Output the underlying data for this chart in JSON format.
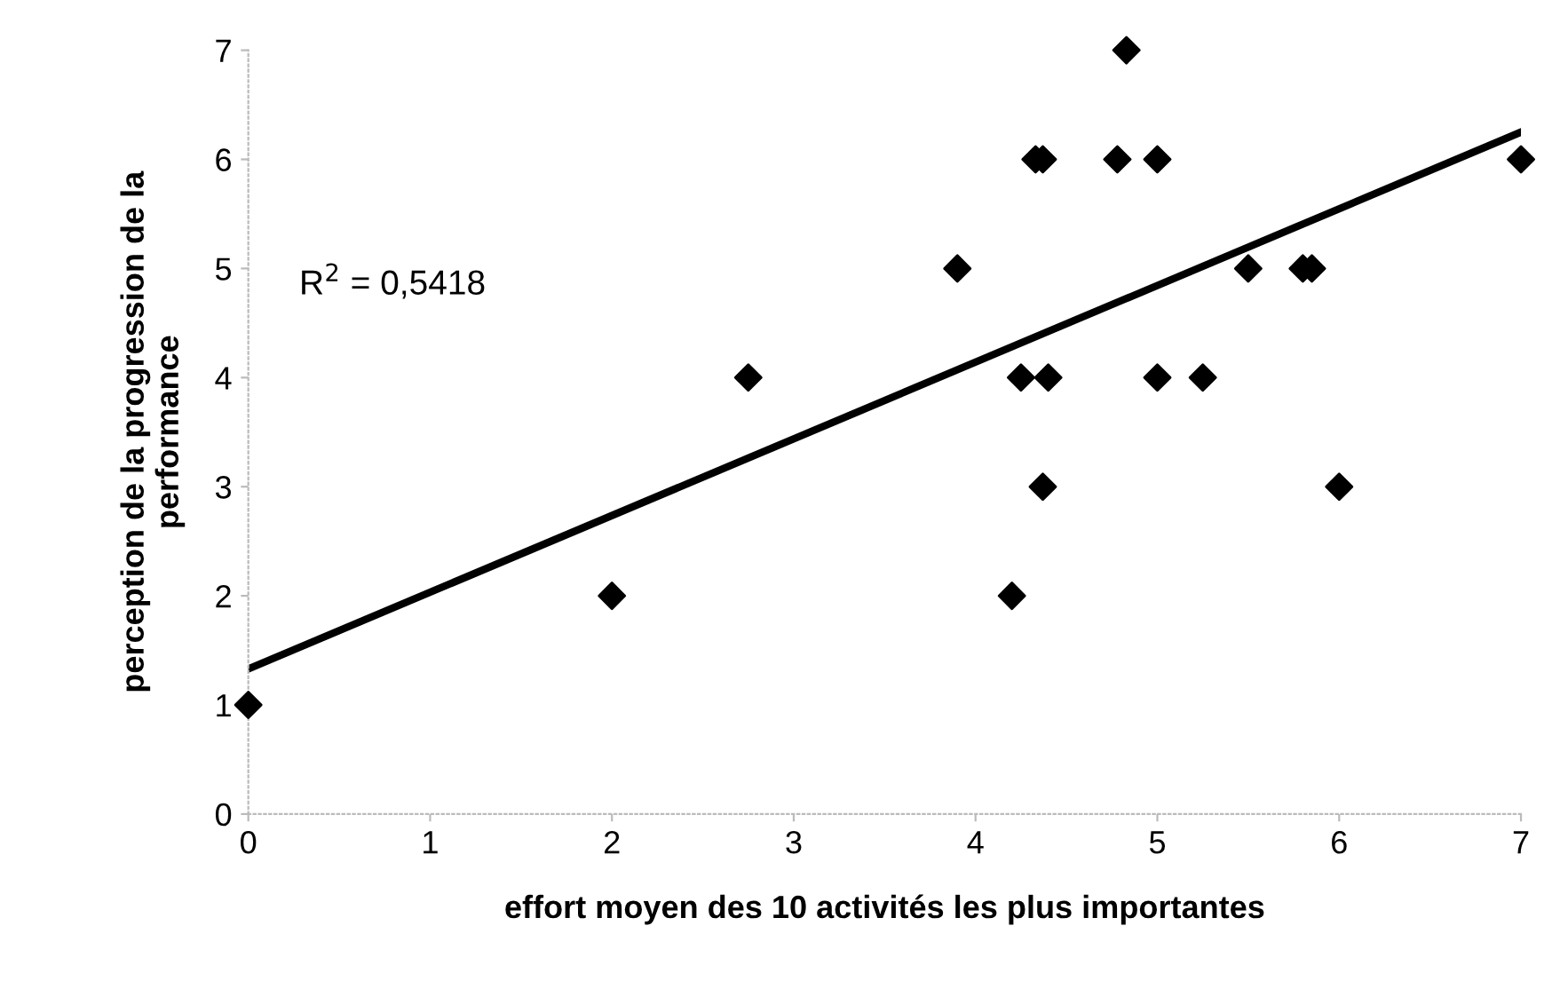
{
  "chart_data": {
    "type": "scatter",
    "xlabel": "effort moyen des 10 activités les plus importantes",
    "ylabel": "perception de la progression de la\nperformance",
    "xlim": [
      0,
      7
    ],
    "ylim": [
      0,
      7
    ],
    "xticks": [
      0,
      1,
      2,
      3,
      4,
      5,
      6,
      7
    ],
    "yticks": [
      0,
      1,
      2,
      3,
      4,
      5,
      6,
      7
    ],
    "grid": false,
    "marker": "diamond",
    "series": [
      {
        "color": "#000000",
        "x": [
          0,
          2,
          2.75,
          3.9,
          4.2,
          4.25,
          4.33,
          4.37,
          4.37,
          4.4,
          4.78,
          4.83,
          5,
          5,
          5.25,
          5.5,
          5.8,
          5.85,
          6,
          7
        ],
        "values": [
          1,
          2,
          4,
          5,
          2,
          4,
          6,
          6,
          3,
          4,
          6,
          7,
          6,
          4,
          4,
          5,
          5,
          5,
          3,
          6
        ]
      },
      {
        "type": "line",
        "color": "#000000",
        "x": [
          0,
          7
        ],
        "values": [
          1.33,
          6.25
        ],
        "marker": "none"
      }
    ],
    "annotations": [
      "R$^{2}$ = 0,5418"
    ]
  }
}
